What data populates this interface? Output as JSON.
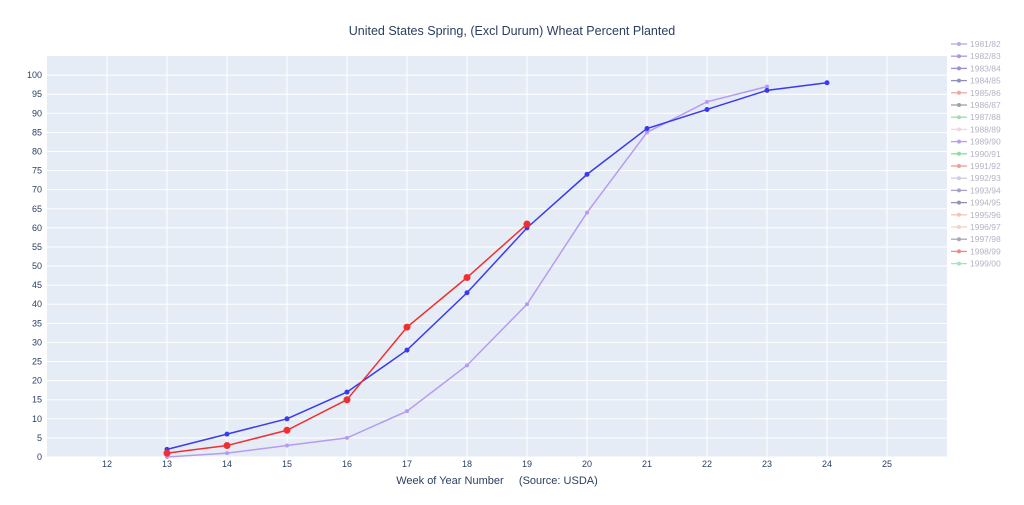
{
  "chart_data": {
    "type": "line",
    "title": "United States Spring, (Excl Durum) Wheat Percent Planted",
    "xlabel": "Week of Year Number     (Source: USDA)",
    "ylabel": "",
    "xlim": [
      11,
      26
    ],
    "ylim": [
      0,
      105
    ],
    "x_ticks": [
      12,
      13,
      14,
      15,
      16,
      17,
      18,
      19,
      20,
      21,
      22,
      23,
      24,
      25
    ],
    "y_ticks": [
      0,
      5,
      10,
      15,
      20,
      25,
      30,
      35,
      40,
      45,
      50,
      55,
      60,
      65,
      70,
      75,
      80,
      85,
      90,
      95,
      100
    ],
    "grid": true,
    "legend_position": "right",
    "background": "#e5ecf6",
    "legend": [
      {
        "name": "1981/82",
        "color": "#b9a6f0"
      },
      {
        "name": "1982/83",
        "color": "#a99bd6"
      },
      {
        "name": "1983/84",
        "color": "#9a8fd8"
      },
      {
        "name": "1984/85",
        "color": "#8f8fb8"
      },
      {
        "name": "1985/86",
        "color": "#f0a79c"
      },
      {
        "name": "1986/87",
        "color": "#a0a0a8"
      },
      {
        "name": "1987/88",
        "color": "#9fe0a8"
      },
      {
        "name": "1988/89",
        "color": "#f3d6dc"
      },
      {
        "name": "1989/90",
        "color": "#b5a0ec"
      },
      {
        "name": "1990/91",
        "color": "#8fdc9a"
      },
      {
        "name": "1991/92",
        "color": "#f29c90"
      },
      {
        "name": "1992/93",
        "color": "#c9cfe6"
      },
      {
        "name": "1993/94",
        "color": "#a8a2c8"
      },
      {
        "name": "1994/95",
        "color": "#8e94b4"
      },
      {
        "name": "1995/96",
        "color": "#f7c2b8"
      },
      {
        "name": "1996/97",
        "color": "#f3d4c6"
      },
      {
        "name": "1997/98",
        "color": "#a8a8b0"
      },
      {
        "name": "1998/99",
        "color": "#f08a80"
      },
      {
        "name": "1999/00",
        "color": "#9fe6b8"
      }
    ],
    "series": [
      {
        "color": "#b69cf0",
        "marker_size": 2,
        "x": [
          13,
          14,
          15,
          16,
          17,
          18,
          19,
          20,
          21,
          22,
          23
        ],
        "y": [
          0,
          1,
          3,
          5,
          12,
          24,
          40,
          64,
          85,
          93,
          97
        ]
      },
      {
        "color": "#3a3af0",
        "marker_size": 2.5,
        "x": [
          13,
          14,
          15,
          16,
          17,
          18,
          19,
          20,
          21,
          22,
          23,
          24
        ],
        "y": [
          2,
          6,
          10,
          17,
          28,
          43,
          60,
          74,
          86,
          91,
          96,
          98
        ]
      },
      {
        "color": "#f03030",
        "marker_size": 3.5,
        "x": [
          13,
          14,
          15,
          16,
          17,
          18,
          19
        ],
        "y": [
          1,
          3,
          7,
          15,
          34,
          47,
          61
        ]
      }
    ]
  }
}
